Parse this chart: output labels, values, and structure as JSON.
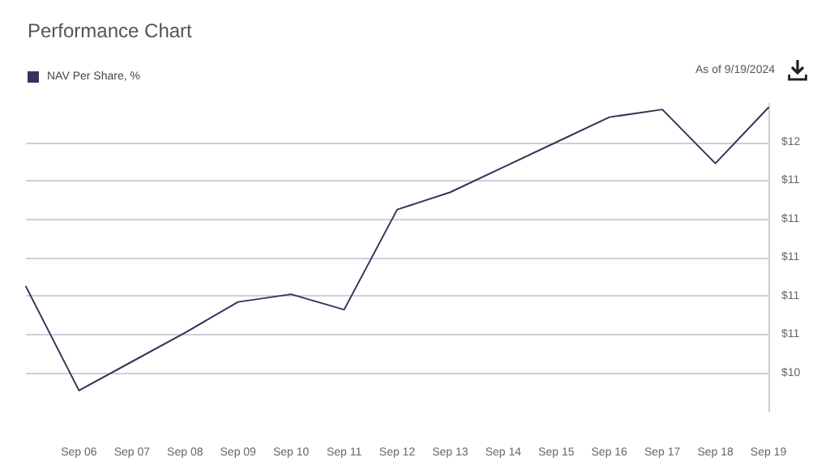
{
  "chart_data": {
    "type": "line",
    "title": "Performance Chart",
    "annotations": [
      "As of 9/19/2024"
    ],
    "categories": [
      null,
      "Sep 06",
      "Sep 07",
      "Sep 08",
      "Sep 09",
      "Sep 10",
      "Sep 11",
      "Sep 12",
      "Sep 13",
      "Sep 14",
      "Sep 15",
      "Sep 16",
      "Sep 17",
      "Sep 18",
      "Sep 19"
    ],
    "series": [
      {
        "name": "NAV Per Share, %",
        "color": "#34345a",
        "values": [
          10.85,
          10.31,
          10.46,
          10.61,
          10.77,
          10.81,
          10.73,
          11.25,
          11.34,
          11.47,
          11.6,
          11.73,
          11.77,
          11.49,
          11.78
        ]
      }
    ],
    "ylim": [
      10.2,
      11.8
    ],
    "yticks": [
      {
        "value": 10.4,
        "label": "$10"
      },
      {
        "value": 10.6,
        "label": "$11"
      },
      {
        "value": 10.8,
        "label": "$11"
      },
      {
        "value": 11.0,
        "label": "$11"
      },
      {
        "value": 11.2,
        "label": "$11"
      },
      {
        "value": 11.4,
        "label": "$11"
      },
      {
        "value": 11.6,
        "label": "$12"
      }
    ],
    "grid": "y",
    "legend": "top left",
    "marker": "none",
    "line_style": "solid"
  }
}
